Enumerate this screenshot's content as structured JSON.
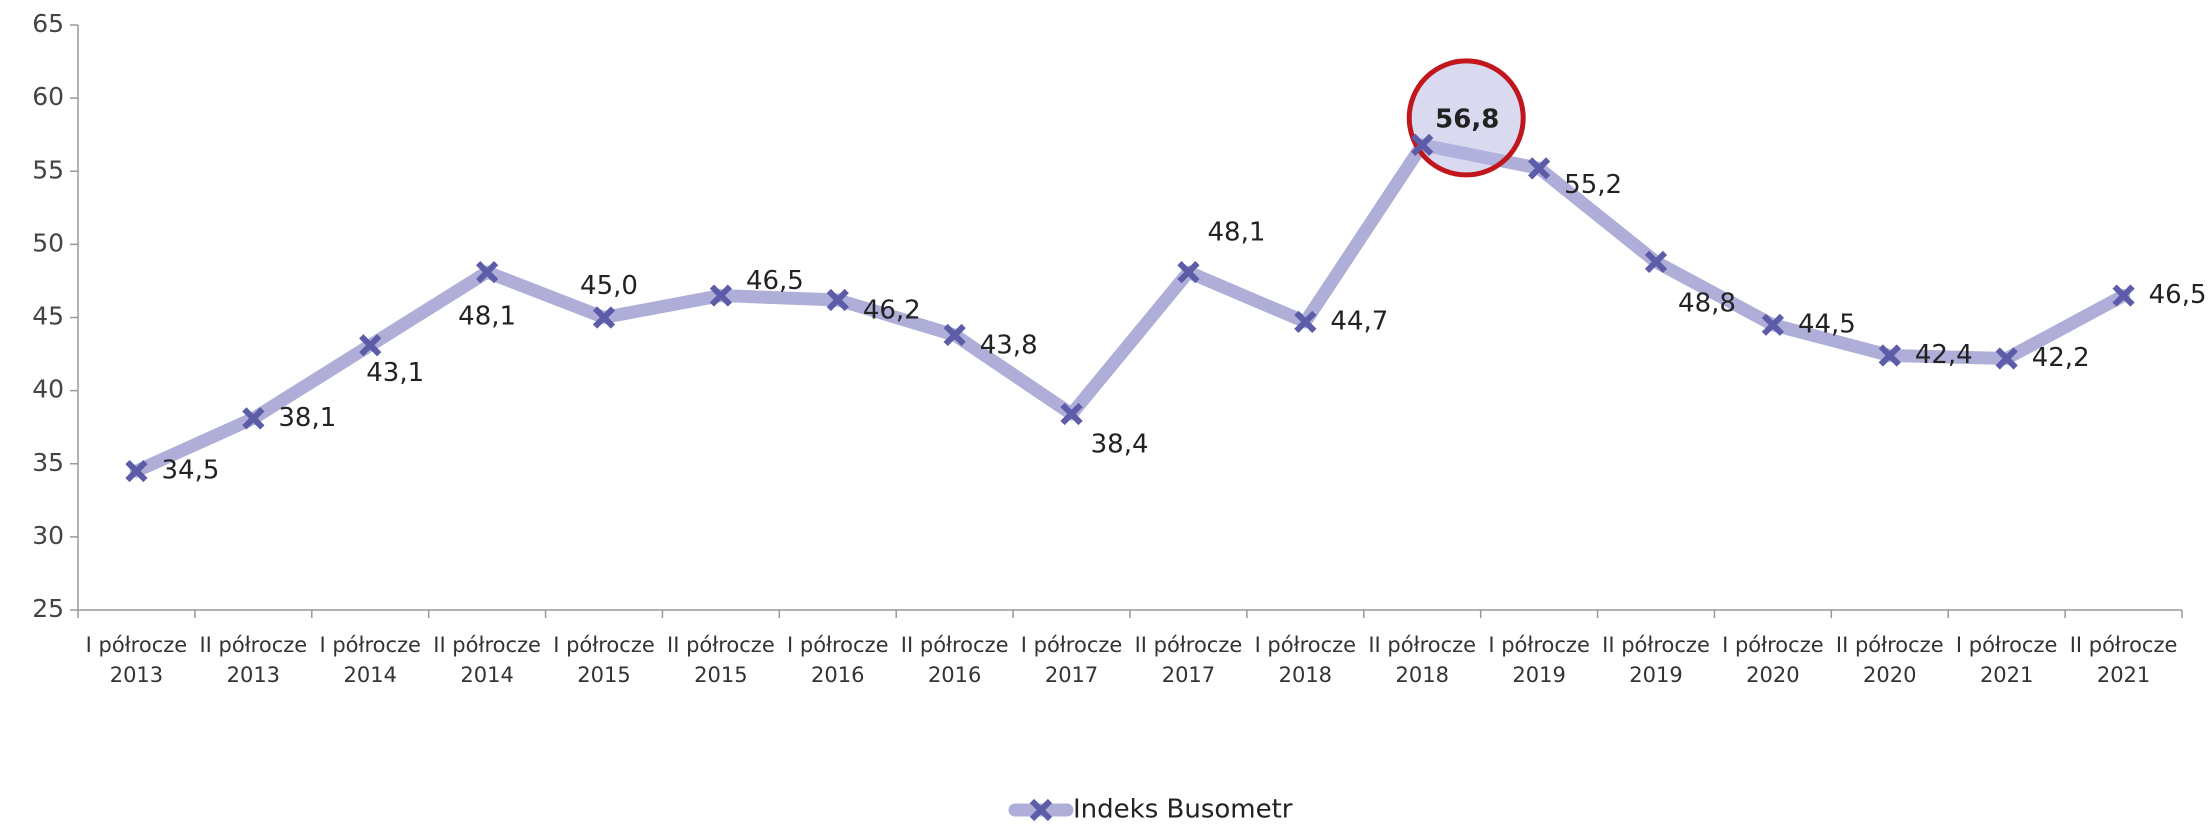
{
  "chart_data": {
    "type": "line",
    "categories": [
      [
        "I półrocze",
        "2013"
      ],
      [
        "II półrocze",
        "2013"
      ],
      [
        "I półrocze",
        "2014"
      ],
      [
        "II półrocze",
        "2014"
      ],
      [
        "I półrocze",
        "2015"
      ],
      [
        "II półrocze",
        "2015"
      ],
      [
        "I półrocze",
        "2016"
      ],
      [
        "II półrocze",
        "2016"
      ],
      [
        "I półrocze",
        "2017"
      ],
      [
        "II półrocze",
        "2017"
      ],
      [
        "I półrocze",
        "2018"
      ],
      [
        "II półrocze",
        "2018"
      ],
      [
        "I półrocze",
        "2019"
      ],
      [
        "II półrocze",
        "2019"
      ],
      [
        "I półrocze",
        "2020"
      ],
      [
        "II półrocze",
        "2020"
      ],
      [
        "I półrocze",
        "2021"
      ],
      [
        "II półrocze",
        "2021"
      ]
    ],
    "series": [
      {
        "name": "Indeks Busometr",
        "color": "#aeaed8",
        "marker_color": "#5c5ca8",
        "values": [
          34.5,
          38.1,
          43.1,
          48.1,
          45.0,
          46.5,
          46.2,
          43.8,
          38.4,
          48.1,
          44.7,
          56.8,
          55.2,
          48.8,
          44.5,
          42.4,
          42.2,
          46.5
        ],
        "value_labels": [
          "34,5",
          "38,1",
          "43,1",
          "48,1",
          "45,0",
          "46,5",
          "46,2",
          "43,8",
          "38,4",
          "48,1",
          "44,7",
          "56,8",
          "55,2",
          "48,8",
          "44,5",
          "42,4",
          "42,2",
          "46,5"
        ]
      }
    ],
    "ylim": [
      25,
      65
    ],
    "yticks": [
      25,
      30,
      35,
      40,
      45,
      50,
      55,
      60,
      65
    ],
    "legend": "bottom"
  }
}
